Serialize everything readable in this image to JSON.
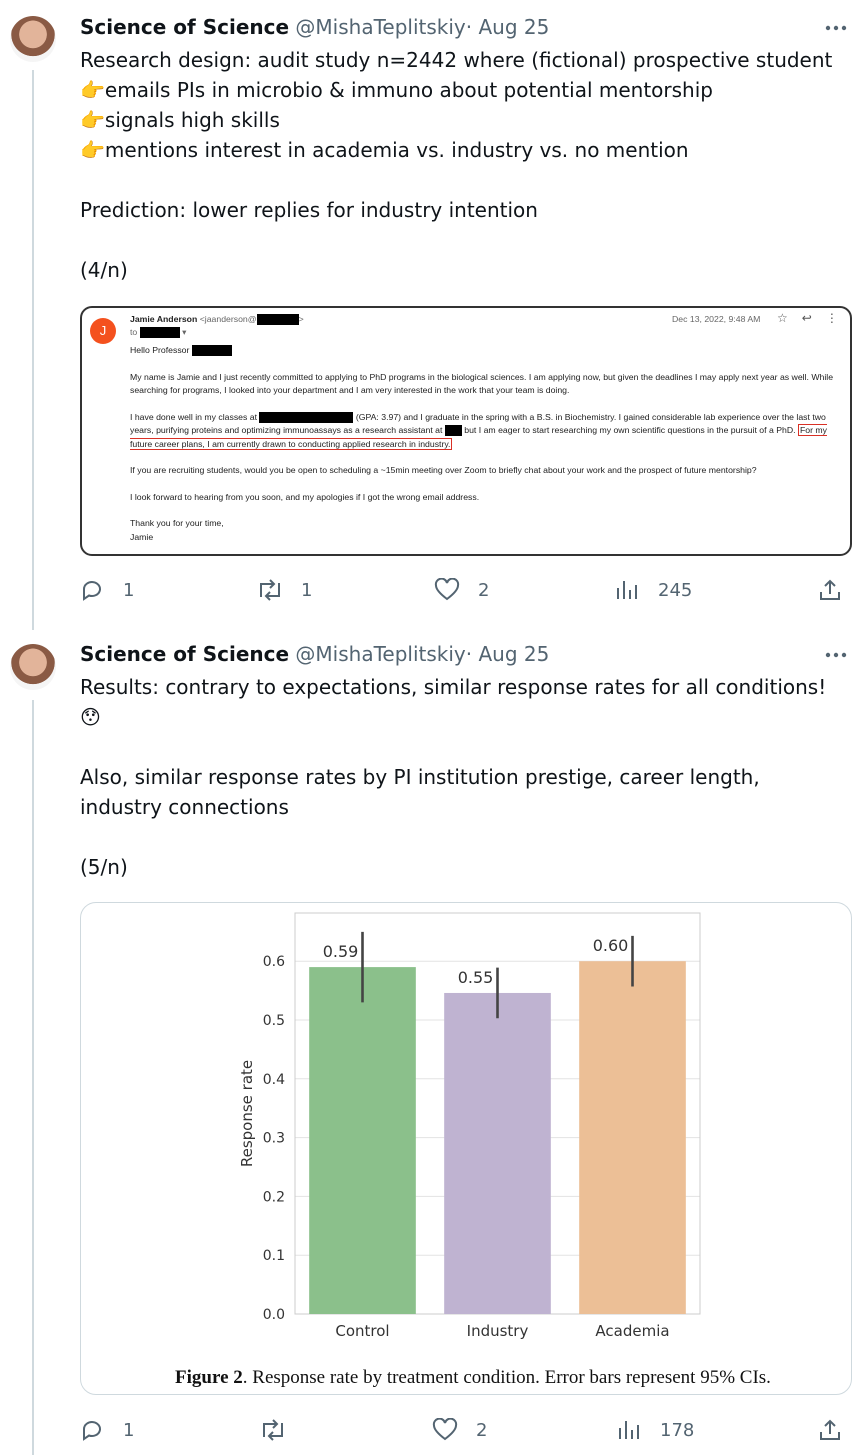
{
  "tweets": [
    {
      "name": "Science of Science",
      "handle": "@MishaTeplitskiy",
      "sep": "·",
      "date": "Aug 25",
      "lines": [
        "Research design: audit study n=2442 where (fictional) prospective student",
        "👉emails PIs in microbio & immuno about potential mentorship",
        "👉signals high skills",
        "👉mentions interest in academia vs. industry vs. no mention",
        "Prediction: lower replies for industry intention",
        "(4/n)"
      ],
      "stats": {
        "replies": "1",
        "reposts": "1",
        "likes": "2",
        "views": "245"
      }
    },
    {
      "name": "Science of Science",
      "handle": "@MishaTeplitskiy",
      "sep": "·",
      "date": "Aug 25",
      "lines": [
        "Results: contrary to expectations, similar response rates for all conditions!",
        "😯",
        "Also, similar response rates by PI institution prestige, career length,",
        "industry connections",
        "(5/n)"
      ],
      "stats": {
        "replies": "1",
        "likes": "2",
        "views": "178"
      }
    }
  ],
  "email": {
    "avatar": "J",
    "sender": "Jamie Anderson",
    "address": "<jaanderson@",
    "address_end": ">",
    "to": "to",
    "date": "Dec 13, 2022, 9:48 AM",
    "greeting": "Hello Professor",
    "p1": "My name is Jamie and I just recently committed to applying to PhD programs in the biological sciences. I am applying now, but given the deadlines I may apply next year as well. While searching for programs, I looked into your department and I am very interested in the work that your team is doing.",
    "p2a": "I have done well in my classes at",
    "p2b": "(GPA: 3.97) and I graduate in the spring with a B.S. in Biochemistry. I gained considerable lab experience over the last two years, purifying proteins and optimizing immunoassays as a research assistant at",
    "p2c": "but I am eager to start researching my own scientific questions in the pursuit of a PhD.",
    "p2d": "For my future career plans, I am currently drawn to conducting applied research in industry.",
    "p3": "If you are recruiting students, would you be open to scheduling a ~15min meeting over Zoom to briefly chat about your work and the prospect of future mentorship?",
    "p4": "I look forward to hearing from you soon, and my apologies if I got the wrong email address.",
    "closing": "Thank you for your time,",
    "signature": "Jamie"
  },
  "chart_data": {
    "type": "bar",
    "categories": [
      "Control",
      "Industry",
      "Academia"
    ],
    "values": [
      0.59,
      0.546,
      0.6
    ],
    "value_labels": [
      "0.59",
      "0.55",
      "0.60"
    ],
    "errors": [
      0.06,
      0.043,
      0.043
    ],
    "colors": [
      "#8bc08b",
      "#bfb3d1",
      "#ecbf96"
    ],
    "ylabel": "Response rate",
    "ylim": [
      0,
      0.682
    ],
    "yticks": [
      {
        "value": 0,
        "label": "0.0"
      },
      0.1,
      0.2,
      0.3,
      0.4,
      0.5,
      0.6
    ],
    "grid": true,
    "caption_label": "Figure 2",
    "caption_text": ". Response rate by treatment condition. Error bars represent 95% CIs."
  }
}
